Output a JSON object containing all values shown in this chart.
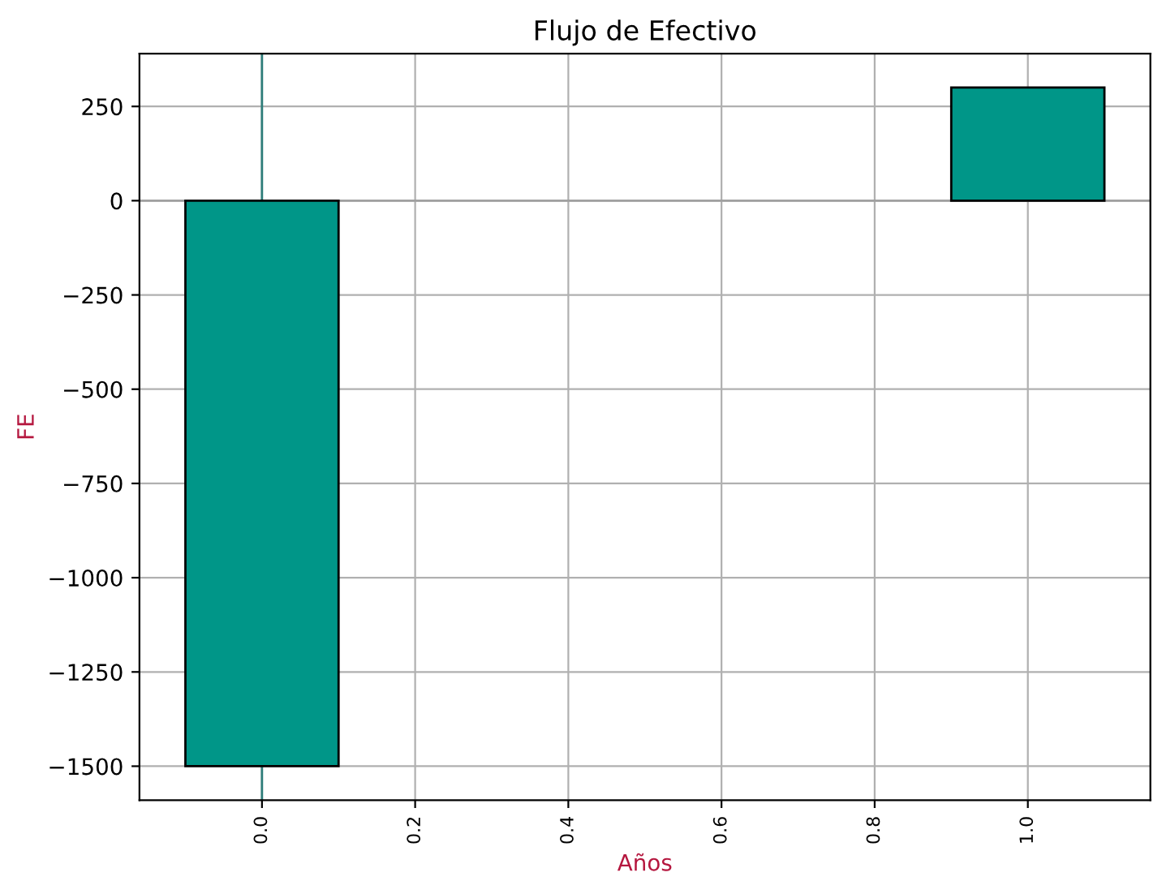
{
  "chart_data": {
    "type": "bar",
    "title": "Flujo de Efectivo",
    "xlabel": "Años",
    "ylabel": "FE",
    "x": [
      0,
      1
    ],
    "values": [
      -1500,
      300
    ],
    "color": "#009688",
    "xlim": [
      -0.16,
      1.16
    ],
    "ylim": [
      -1590,
      390
    ],
    "xticks": [
      {
        "value": 0,
        "label": "0.0"
      },
      {
        "value": 0.2,
        "label": "0.2"
      },
      {
        "value": 0.4,
        "label": "0.4"
      },
      {
        "value": 0.6,
        "label": "0.6"
      },
      {
        "value": 0.8,
        "label": "0.8"
      },
      {
        "value": 1,
        "label": "1.0"
      }
    ],
    "yticks": [
      {
        "value": -1500,
        "label": "−1500"
      },
      {
        "value": -1250,
        "label": "−1250"
      },
      {
        "value": -1000,
        "label": "−1000"
      },
      {
        "value": -750,
        "label": "−750"
      },
      {
        "value": -500,
        "label": "−500"
      },
      {
        "value": -250,
        "label": "−250"
      },
      0,
      250
    ],
    "ref_lines": [
      {
        "axis": "y",
        "value": 0,
        "color": "#a0a0a0"
      },
      {
        "axis": "x",
        "value": 0,
        "color": "#2e7d7a"
      }
    ],
    "grid": true
  }
}
